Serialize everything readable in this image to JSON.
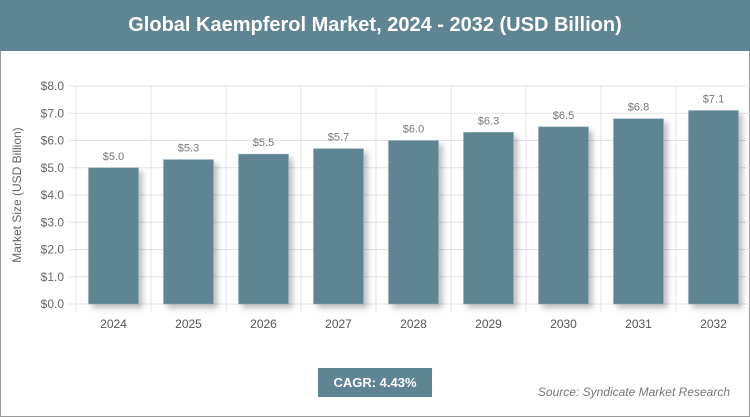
{
  "chart_data": {
    "type": "bar",
    "title": "Global Kaempferol Market, 2024 - 2032 (USD Billion)",
    "xlabel": "",
    "ylabel": "Market Size (USD Billion)",
    "categories": [
      "2024",
      "2025",
      "2026",
      "2027",
      "2028",
      "2029",
      "2030",
      "2031",
      "2032"
    ],
    "values": [
      5.0,
      5.3,
      5.5,
      5.7,
      6.0,
      6.3,
      6.5,
      6.8,
      7.1
    ],
    "data_labels": [
      "$5.0",
      "$5.3",
      "$5.5",
      "$5.7",
      "$6.0",
      "$6.3",
      "$6.5",
      "$6.8",
      "$7.1"
    ],
    "ylim": [
      0,
      8
    ],
    "yticks": [
      "$0.0",
      "$1.0",
      "$2.0",
      "$3.0",
      "$4.0",
      "$5.0",
      "$6.0",
      "$7.0",
      "$8.0"
    ],
    "grid": true,
    "bar_color": "#5f8494"
  },
  "cagr": "CAGR: 4.43%",
  "source": "Source: Syndicate Market Research"
}
